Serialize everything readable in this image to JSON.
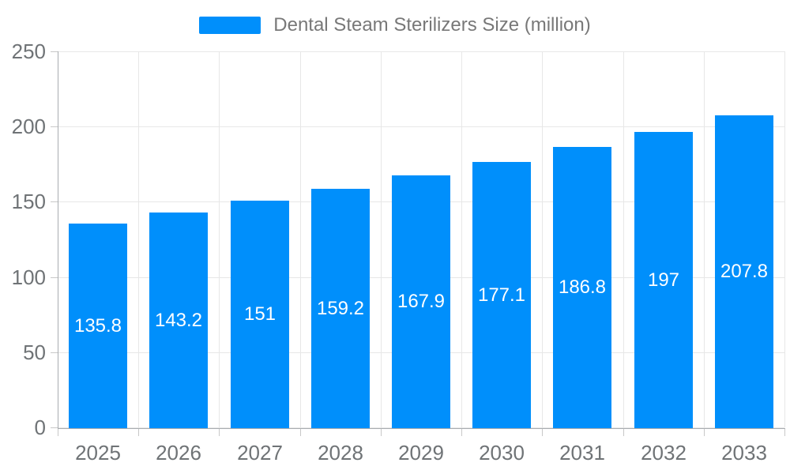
{
  "legend": {
    "series_label": "Dental Steam Sterilizers Size (million)"
  },
  "chart_data": {
    "type": "bar",
    "title": "Dental Steam Sterilizers Size (million)",
    "categories": [
      "2025",
      "2026",
      "2027",
      "2028",
      "2029",
      "2030",
      "2031",
      "2032",
      "2033"
    ],
    "series": [
      {
        "name": "Dental Steam Sterilizers Size (million)",
        "values": [
          135.8,
          143.2,
          151,
          159.2,
          167.9,
          177.1,
          186.8,
          197,
          207.8
        ]
      }
    ],
    "value_labels": [
      "135.8",
      "143.2",
      "151",
      "159.2",
      "167.9",
      "177.1",
      "186.8",
      "197",
      "207.8"
    ],
    "xlabel": "",
    "ylabel": "",
    "ylim": [
      0,
      250
    ],
    "yticks": [
      0,
      50,
      100,
      150,
      200,
      250
    ],
    "grid": true,
    "legend_position": "top",
    "value_label_position": "inside-center",
    "colors": {
      "bar": "#008FFB",
      "value_label": "#FFFFFF",
      "axis_label": "#6F7376",
      "legend_label": "#787878",
      "gridline": "#E7E7E7",
      "axis_line": "#A9ADB0",
      "tick": "#C8C8C8",
      "background": "#FFFFFF"
    }
  }
}
